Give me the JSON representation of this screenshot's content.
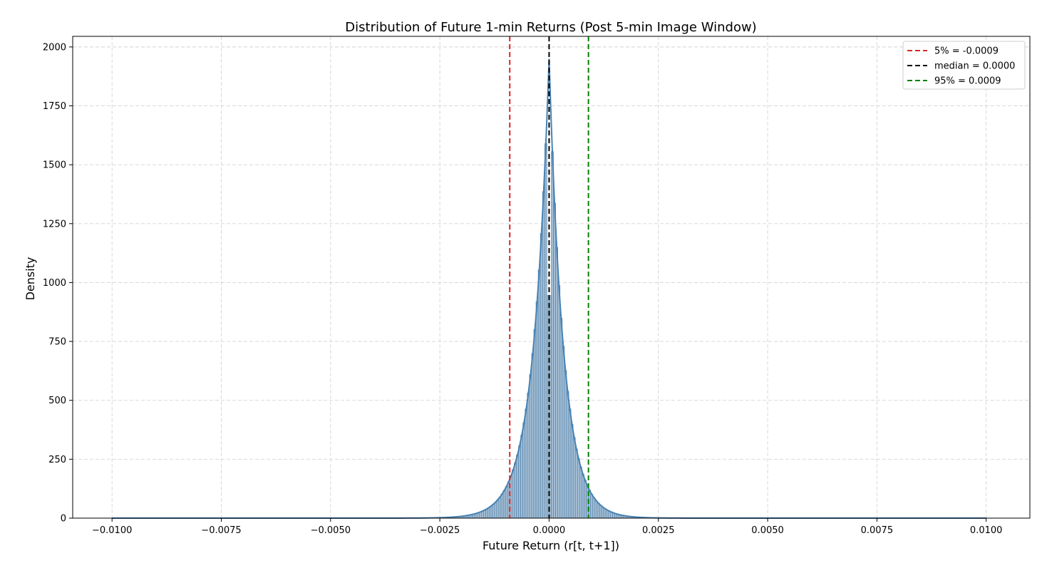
{
  "chart_data": {
    "type": "bar",
    "title": "Distribution of Future 1-min Returns (Post 5-min Image Window)",
    "xlabel": "Future Return (r[t, t+1])",
    "ylabel": "Density",
    "xlim": [
      -0.0109,
      0.011
    ],
    "ylim": [
      0,
      2045
    ],
    "xticks": [
      -0.01,
      -0.0075,
      -0.005,
      -0.0025,
      0.0,
      0.0025,
      0.005,
      0.0075,
      0.01
    ],
    "xtick_labels": [
      "−0.0100",
      "−0.0075",
      "−0.0050",
      "−0.0025",
      "0.0000",
      "0.0025",
      "0.0050",
      "0.0075",
      "0.0100"
    ],
    "yticks": [
      0,
      250,
      500,
      750,
      1000,
      1250,
      1500,
      1750,
      2000
    ],
    "ytick_labels": [
      "0",
      "250",
      "500",
      "750",
      "1000",
      "1250",
      "1500",
      "1750",
      "2000"
    ],
    "grid": true,
    "legend_position": "top-right",
    "histogram": {
      "range": [
        -0.01,
        0.01
      ],
      "bins": 400,
      "peak_density": 1950,
      "shape": "two-sided exponential (Laplace-like) centered at 0.0000",
      "left_decay_scale": 0.000365,
      "right_decay_scale": 0.00033
    },
    "kde_line": {
      "peak_density": 1950
    },
    "reference_lines": [
      {
        "label": "5% = -0.0009",
        "x": -0.0009,
        "color": "#d62728"
      },
      {
        "label": "median = 0.0000",
        "x": 0.0,
        "color": "#000000"
      },
      {
        "label": "95% = 0.0009",
        "x": 0.0009,
        "color": "#008000"
      }
    ],
    "colors": {
      "bar_fill": "#a3bcd2",
      "bar_edge": "#4b7fab",
      "kde_line": "#4682b4",
      "grid": "#d3d3d3"
    }
  }
}
